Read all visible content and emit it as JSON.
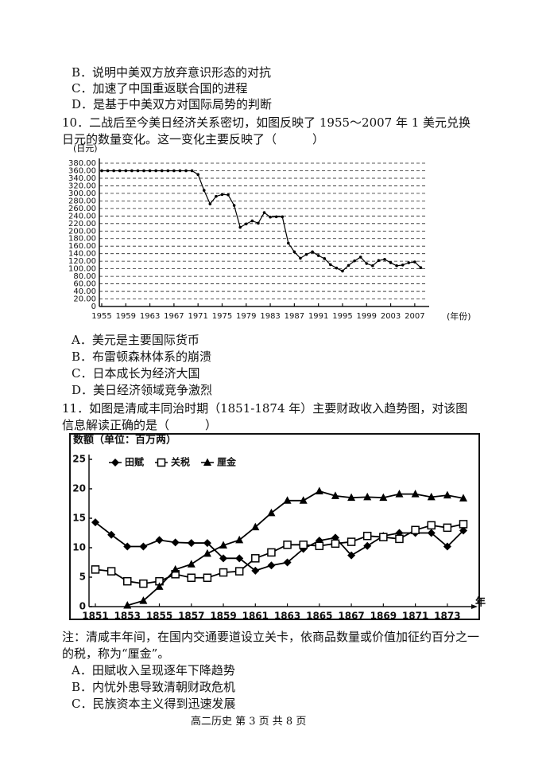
{
  "document": {
    "prev_options": [
      "B．说明中美双方放弃意识形态的对抗",
      "C．加速了中国重返联合国的进程",
      "D．是基于中美双方对国际局势的判断"
    ],
    "q10": {
      "stem": "10．二战后至今美日经济关系密切，如图反映了 1955～2007 年 1 美元兑换日元的数量变化。这一变化主要反映了（　　　）",
      "options": [
        "A．美元是主要国际货币",
        "B．布雷顿森林体系的崩溃",
        "C．日本成长为经济大国",
        "D．美日经济领域竞争激烈"
      ]
    },
    "q11": {
      "stem": "11．如图是清咸丰同治时期（1851-1874 年）主要财政收入趋势图，对该图信息解读正确的是（　　　）",
      "note": "注：清咸丰年间，在国内交通要道设立关卡，依商品数量或价值加征约百分之一的税，称为“厘金”。",
      "options": [
        "A．田赋收入呈现逐年下降趋势",
        "B．内忧外患导致清朝财政危机",
        "C．民族资本主义得到迅速发展"
      ]
    },
    "footer": "高二历史 第 3 页 共 8 页"
  },
  "chart_data": [
    {
      "type": "line",
      "y_label": "(日元)",
      "x_label": "(年份)",
      "grid": true,
      "color": "#000000",
      "x": [
        1955,
        1956,
        1957,
        1958,
        1959,
        1960,
        1961,
        1962,
        1963,
        1964,
        1965,
        1966,
        1967,
        1968,
        1969,
        1970,
        1971,
        1972,
        1973,
        1974,
        1975,
        1976,
        1977,
        1978,
        1979,
        1980,
        1981,
        1982,
        1983,
        1984,
        1985,
        1986,
        1987,
        1988,
        1989,
        1990,
        1991,
        1992,
        1993,
        1994,
        1995,
        1996,
        1997,
        1998,
        1999,
        2000,
        2001,
        2002,
        2003,
        2004,
        2005,
        2006,
        2007,
        2008
      ],
      "values": [
        360,
        360,
        360,
        360,
        360,
        360,
        360,
        360,
        360,
        360,
        360,
        360,
        360,
        360,
        360,
        360,
        350,
        308,
        272,
        292,
        297,
        296,
        268,
        210,
        219,
        227,
        221,
        249,
        237,
        238,
        238,
        168,
        145,
        128,
        138,
        145,
        135,
        127,
        111,
        102,
        94,
        109,
        121,
        131,
        114,
        108,
        122,
        125,
        116,
        108,
        110,
        116,
        118,
        103
      ],
      "xlim": [
        1955,
        2009
      ],
      "xticks": [
        1955,
        1959,
        1963,
        1967,
        1971,
        1975,
        1979,
        1983,
        1987,
        1991,
        1995,
        1999,
        2003,
        2007
      ],
      "ylim": [
        0,
        380
      ],
      "yticks": [
        0,
        {
          "value": 20,
          "label": "20.00"
        },
        {
          "value": 40,
          "label": "40.00"
        },
        {
          "value": 60,
          "label": "60.00"
        },
        {
          "value": 80,
          "label": "80.00"
        },
        {
          "value": 100,
          "label": "100.00"
        },
        {
          "value": 120,
          "label": "120.00"
        },
        {
          "value": 140,
          "label": "140.00"
        },
        {
          "value": 160,
          "label": "160.00"
        },
        {
          "value": 180,
          "label": "180.00"
        },
        {
          "value": 200,
          "label": "200.00"
        },
        {
          "value": 220,
          "label": "220.00"
        },
        {
          "value": 240,
          "label": "240.00"
        },
        {
          "value": 260,
          "label": "260.00"
        },
        {
          "value": 280,
          "label": "280.00"
        },
        {
          "value": 300,
          "label": "300.00"
        },
        {
          "value": 320,
          "label": "320.00"
        },
        {
          "value": 340,
          "label": "340.00"
        },
        {
          "value": 360,
          "label": "360.00"
        },
        {
          "value": 380,
          "label": "380.00"
        }
      ]
    },
    {
      "type": "line",
      "y_label": "数额（单位：百万两）",
      "x_label": "年",
      "grid": false,
      "x": [
        1851,
        1852,
        1853,
        1854,
        1855,
        1856,
        1857,
        1858,
        1859,
        1860,
        1861,
        1862,
        1863,
        1864,
        1865,
        1866,
        1867,
        1868,
        1869,
        1870,
        1871,
        1872,
        1873,
        1874
      ],
      "series": [
        {
          "name": "田赋",
          "color": "#000000",
          "marker": "diamond",
          "values": [
            14.3,
            12.2,
            10.2,
            10.2,
            11.3,
            10.9,
            10.8,
            10.8,
            8.2,
            8.2,
            6.1,
            7.0,
            7.5,
            9.8,
            11.2,
            11.7,
            8.7,
            10.3,
            12.0,
            12.5,
            12.5,
            12.5,
            10.2,
            12.9
          ]
        },
        {
          "name": "关税",
          "color": "#000000",
          "marker": "square-open",
          "values": [
            6.3,
            6.0,
            4.3,
            3.9,
            4.3,
            5.5,
            4.9,
            4.9,
            5.8,
            6.0,
            8.2,
            9.2,
            10.5,
            10.5,
            10.3,
            10.7,
            11.0,
            12.0,
            11.8,
            11.5,
            13.0,
            13.8,
            13.4,
            14.0
          ]
        },
        {
          "name": "厘金",
          "color": "#000000",
          "marker": "triangle",
          "values": [
            null,
            null,
            0.2,
            1.0,
            3.4,
            6.3,
            7.2,
            9.0,
            10.4,
            11.3,
            13.5,
            15.9,
            18.0,
            18.0,
            19.6,
            18.8,
            18.5,
            18.6,
            18.5,
            19.1,
            19.1,
            18.6,
            18.9,
            18.4
          ]
        }
      ],
      "xlim": [
        1851,
        1874
      ],
      "xticks": [
        1851,
        1853,
        1855,
        1857,
        1859,
        1861,
        1863,
        1865,
        1867,
        1869,
        1871,
        1873
      ],
      "ylim": [
        0,
        25
      ],
      "yticks": [
        0,
        5,
        10,
        15,
        20,
        25
      ]
    }
  ]
}
